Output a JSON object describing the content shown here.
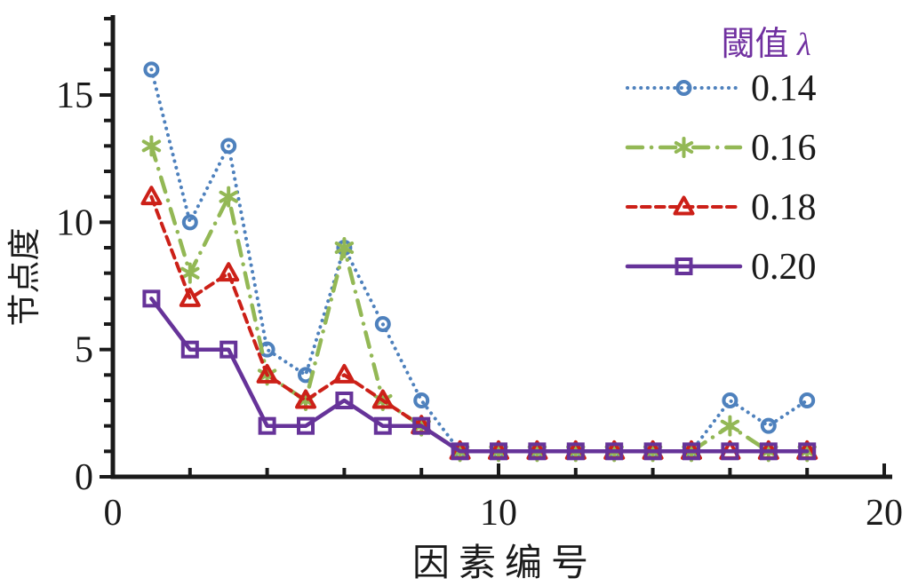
{
  "figure": {
    "background": "#ffffff",
    "axis_color": "#1a1a1a",
    "text_color": "#1a1a1a"
  },
  "chart_data": {
    "type": "line",
    "title": "",
    "xlabel": "因素编号",
    "ylabel": "节点度",
    "xlim": [
      0,
      20
    ],
    "ylim": [
      0,
      18
    ],
    "xticks": [
      0,
      10,
      20
    ],
    "yticks": [
      0,
      5,
      10,
      15
    ],
    "x_minor_step": 2,
    "y_minor_step": 1,
    "grid": false,
    "legend": {
      "position": "top-right",
      "title_text": "閾值",
      "title_symbol": "λ",
      "title_color": "#7030A0",
      "entries": [
        "0.14",
        "0.16",
        "0.18",
        "0.20"
      ]
    },
    "x": [
      1,
      2,
      3,
      4,
      5,
      6,
      7,
      8,
      9,
      10,
      11,
      12,
      13,
      14,
      15,
      16,
      17,
      18
    ],
    "series": [
      {
        "name": "0.14",
        "color": "#4E81BD",
        "marker": "circle",
        "line": "dotted",
        "values": [
          16,
          10,
          13,
          5,
          4,
          9,
          6,
          3,
          1,
          1,
          1,
          1,
          1,
          1,
          1,
          3,
          2,
          3
        ]
      },
      {
        "name": "0.16",
        "color": "#93B855",
        "marker": "asterisk",
        "line": "dashdot",
        "values": [
          13,
          8,
          11,
          4,
          3,
          9,
          3,
          2,
          1,
          1,
          1,
          1,
          1,
          1,
          1,
          2,
          1,
          1
        ]
      },
      {
        "name": "0.18",
        "color": "#CC2018",
        "marker": "triangle",
        "line": "dashed",
        "values": [
          11,
          7,
          8,
          4,
          3,
          4,
          3,
          2,
          1,
          1,
          1,
          1,
          1,
          1,
          1,
          1,
          1,
          1
        ]
      },
      {
        "name": "0.20",
        "color": "#663399",
        "marker": "square",
        "line": "solid",
        "values": [
          7,
          5,
          5,
          2,
          2,
          3,
          2,
          2,
          1,
          1,
          1,
          1,
          1,
          1,
          1,
          1,
          1,
          1
        ]
      }
    ]
  }
}
